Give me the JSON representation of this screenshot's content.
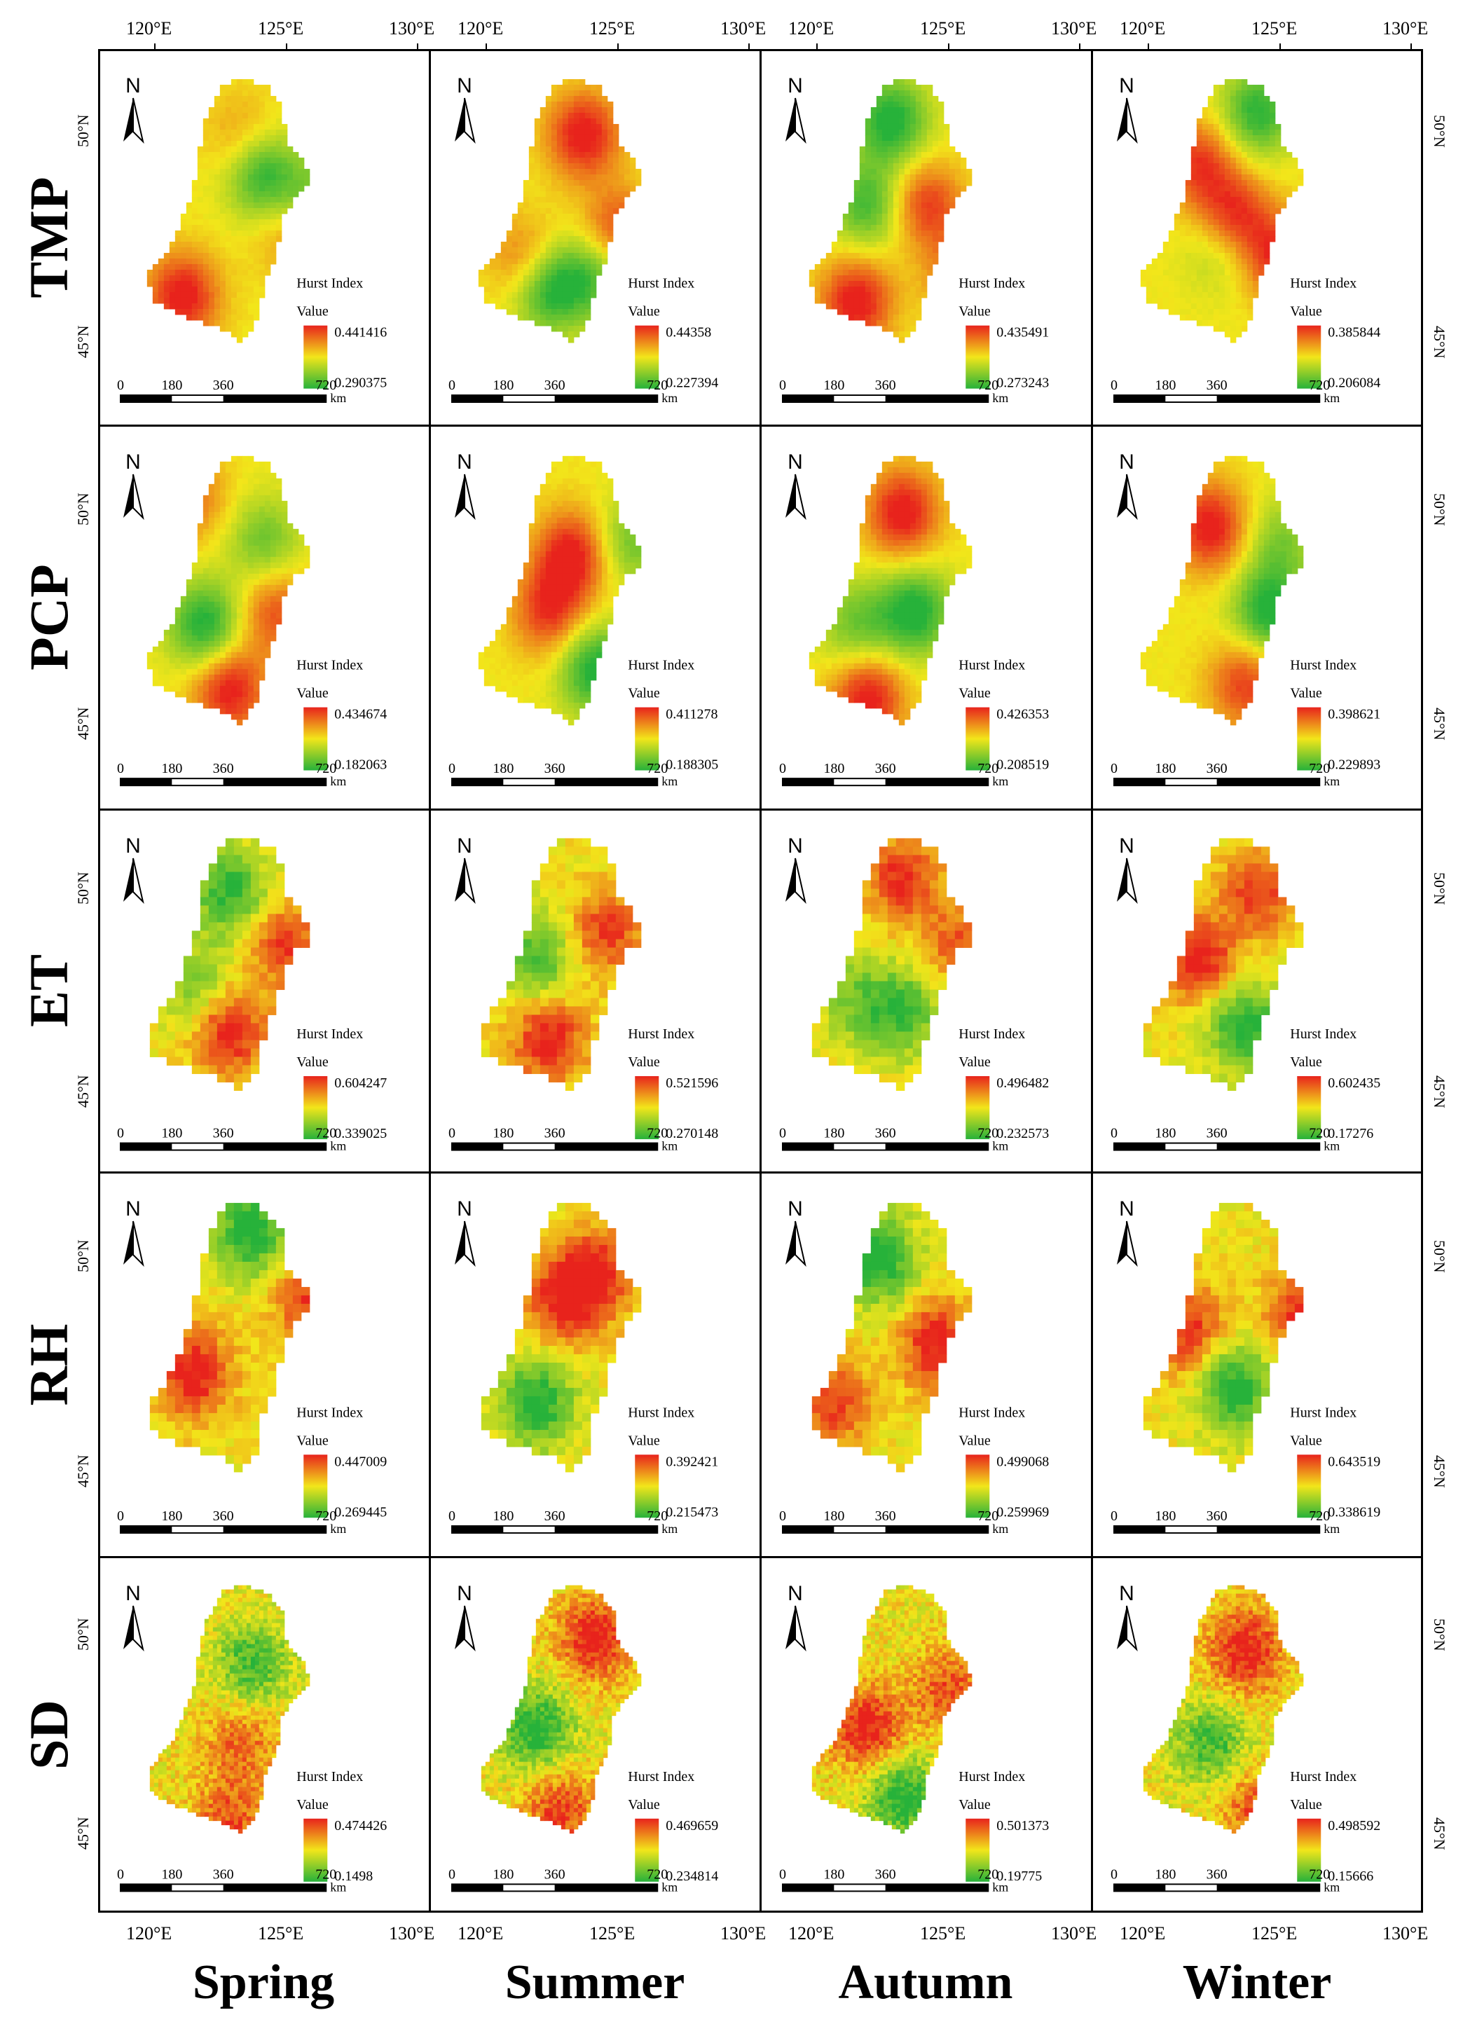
{
  "figure": {
    "top_lon_ticks": [
      "120°E",
      "125°E",
      "130°E"
    ],
    "bottom_lon_ticks": [
      "120°E",
      "125°E",
      "130°E"
    ],
    "lat_ticks": [
      "50°N",
      "45°N"
    ],
    "north_label": "N",
    "legend_title": "Hurst Index",
    "legend_sub": "Value",
    "scale_ticks": [
      "0",
      "180",
      "360",
      "720"
    ],
    "scale_unit": "km",
    "colors": {
      "high": "#e8231c",
      "mid": "#f2e61a",
      "low": "#27b23a"
    }
  },
  "rows": [
    {
      "label": "TMP",
      "panels": [
        {
          "max": "0.441416",
          "min": "0.290375",
          "style": "smooth",
          "hot": [
            [
              0.25,
              0.78,
              1.0
            ],
            [
              0.5,
              0.2,
              0.35
            ],
            [
              0.72,
              0.55,
              0.45
            ]
          ],
          "cool": [
            [
              0.6,
              0.35,
              0.9
            ],
            [
              0.85,
              0.45,
              0.7
            ]
          ]
        },
        {
          "max": "0.44358",
          "min": "0.227394",
          "style": "smooth",
          "hot": [
            [
              0.55,
              0.2,
              1.0
            ],
            [
              0.7,
              0.55,
              0.8
            ],
            [
              0.3,
              0.65,
              0.6
            ]
          ],
          "cool": [
            [
              0.4,
              0.75,
              1.0
            ],
            [
              0.6,
              0.7,
              0.7
            ]
          ]
        },
        {
          "max": "0.435491",
          "min": "0.273243",
          "style": "smooth",
          "hot": [
            [
              0.3,
              0.8,
              1.0
            ],
            [
              0.6,
              0.45,
              0.8
            ],
            [
              0.75,
              0.7,
              0.6
            ]
          ],
          "cool": [
            [
              0.45,
              0.15,
              1.0
            ],
            [
              0.35,
              0.45,
              0.8
            ]
          ]
        },
        {
          "max": "0.385844",
          "min": "0.206084",
          "style": "smooth",
          "hot": [
            [
              0.5,
              0.5,
              1.0
            ],
            [
              0.7,
              0.65,
              0.9
            ],
            [
              0.35,
              0.3,
              0.8
            ]
          ],
          "cool": [
            [
              0.6,
              0.12,
              0.9
            ],
            [
              0.45,
              0.6,
              0.5
            ]
          ]
        }
      ]
    },
    {
      "label": "PCP",
      "panels": [
        {
          "max": "0.434674",
          "min": "0.182063",
          "style": "smooth",
          "hot": [
            [
              0.45,
              0.82,
              1.0
            ],
            [
              0.65,
              0.55,
              0.7
            ],
            [
              0.3,
              0.15,
              0.5
            ]
          ],
          "cool": [
            [
              0.35,
              0.6,
              1.0
            ],
            [
              0.6,
              0.3,
              0.6
            ]
          ]
        },
        {
          "max": "0.411278",
          "min": "0.188305",
          "style": "smooth",
          "hot": [
            [
              0.5,
              0.35,
              1.0
            ],
            [
              0.4,
              0.55,
              0.8
            ]
          ],
          "cool": [
            [
              0.6,
              0.75,
              1.0
            ],
            [
              0.75,
              0.3,
              0.6
            ]
          ]
        },
        {
          "max": "0.426353",
          "min": "0.208519",
          "style": "smooth",
          "hot": [
            [
              0.5,
              0.2,
              1.0
            ],
            [
              0.35,
              0.85,
              1.0
            ]
          ],
          "cool": [
            [
              0.55,
              0.55,
              1.0
            ],
            [
              0.3,
              0.6,
              0.6
            ]
          ]
        },
        {
          "max": "0.398621",
          "min": "0.229893",
          "style": "smooth",
          "hot": [
            [
              0.4,
              0.25,
              1.0
            ],
            [
              0.55,
              0.8,
              0.8
            ]
          ],
          "cool": [
            [
              0.65,
              0.55,
              1.0
            ],
            [
              0.7,
              0.3,
              0.5
            ]
          ]
        }
      ]
    },
    {
      "label": "ET",
      "panels": [
        {
          "max": "0.604247",
          "min": "0.339025",
          "style": "pixel",
          "hot": [
            [
              0.45,
              0.72,
              1.0
            ],
            [
              0.7,
              0.4,
              0.8
            ]
          ],
          "cool": [
            [
              0.45,
              0.2,
              0.9
            ],
            [
              0.3,
              0.55,
              0.6
            ]
          ]
        },
        {
          "max": "0.521596",
          "min": "0.270148",
          "style": "pixel",
          "hot": [
            [
              0.4,
              0.75,
              1.0
            ],
            [
              0.65,
              0.35,
              0.8
            ]
          ],
          "cool": [
            [
              0.35,
              0.45,
              0.8
            ]
          ]
        },
        {
          "max": "0.496482",
          "min": "0.232573",
          "style": "pixel",
          "hot": [
            [
              0.5,
              0.15,
              0.9
            ],
            [
              0.75,
              0.4,
              0.7
            ]
          ],
          "cool": [
            [
              0.5,
              0.65,
              0.8
            ],
            [
              0.3,
              0.6,
              0.5
            ]
          ]
        },
        {
          "max": "0.602435",
          "min": "0.17276",
          "style": "pixel",
          "hot": [
            [
              0.35,
              0.45,
              1.0
            ],
            [
              0.6,
              0.2,
              0.8
            ]
          ],
          "cool": [
            [
              0.55,
              0.7,
              1.0
            ]
          ]
        }
      ]
    },
    {
      "label": "RH",
      "panels": [
        {
          "max": "0.447009",
          "min": "0.269445",
          "style": "pixel",
          "hot": [
            [
              0.3,
              0.6,
              1.0
            ],
            [
              0.8,
              0.35,
              0.8
            ]
          ],
          "cool": [
            [
              0.55,
              0.1,
              1.0
            ]
          ]
        },
        {
          "max": "0.392421",
          "min": "0.215473",
          "style": "pixel",
          "hot": [
            [
              0.6,
              0.25,
              1.0
            ],
            [
              0.45,
              0.35,
              0.8
            ]
          ],
          "cool": [
            [
              0.35,
              0.7,
              1.0
            ]
          ]
        },
        {
          "max": "0.499068",
          "min": "0.259969",
          "style": "pixel",
          "hot": [
            [
              0.65,
              0.5,
              1.0
            ],
            [
              0.2,
              0.7,
              0.8
            ]
          ],
          "cool": [
            [
              0.4,
              0.2,
              1.0
            ]
          ]
        },
        {
          "max": "0.643519",
          "min": "0.338619",
          "style": "pixel",
          "hot": [
            [
              0.3,
              0.45,
              0.9
            ],
            [
              0.8,
              0.4,
              0.9
            ]
          ],
          "cool": [
            [
              0.5,
              0.65,
              1.0
            ]
          ]
        }
      ]
    },
    {
      "label": "SD",
      "panels": [
        {
          "max": "0.474426",
          "min": "0.1498",
          "style": "noise",
          "hot": [
            [
              0.5,
              0.6,
              0.6
            ],
            [
              0.45,
              0.9,
              0.7
            ]
          ],
          "cool": [
            [
              0.55,
              0.3,
              0.8
            ]
          ]
        },
        {
          "max": "0.469659",
          "min": "0.234814",
          "style": "noise",
          "hot": [
            [
              0.6,
              0.2,
              1.0
            ],
            [
              0.45,
              0.85,
              0.8
            ]
          ],
          "cool": [
            [
              0.35,
              0.55,
              1.0
            ]
          ]
        },
        {
          "max": "0.501373",
          "min": "0.19775",
          "style": "noise",
          "hot": [
            [
              0.35,
              0.55,
              1.0
            ],
            [
              0.7,
              0.4,
              0.7
            ]
          ],
          "cool": [
            [
              0.5,
              0.8,
              1.0
            ]
          ]
        },
        {
          "max": "0.498592",
          "min": "0.15666",
          "style": "noise",
          "hot": [
            [
              0.55,
              0.25,
              1.0
            ],
            [
              0.6,
              0.85,
              0.7
            ]
          ],
          "cool": [
            [
              0.4,
              0.6,
              0.8
            ]
          ]
        }
      ]
    }
  ],
  "columns": [
    "Spring",
    "Summer",
    "Autumn",
    "Winter"
  ]
}
